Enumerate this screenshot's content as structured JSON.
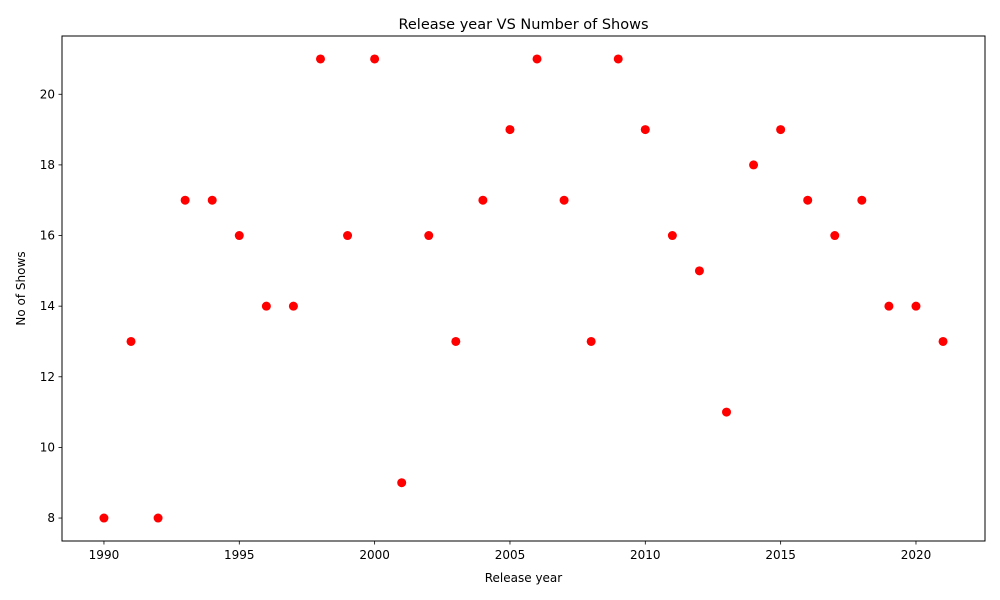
{
  "chart_data": {
    "type": "scatter",
    "title": "Release year VS Number of Shows",
    "xlabel": "Release year",
    "ylabel": "No of Shows",
    "x": [
      1990,
      1991,
      1992,
      1993,
      1994,
      1995,
      1996,
      1997,
      1998,
      1999,
      2000,
      2001,
      2002,
      2003,
      2004,
      2005,
      2006,
      2007,
      2008,
      2009,
      2010,
      2011,
      2012,
      2013,
      2014,
      2015,
      2016,
      2017,
      2018,
      2019,
      2020,
      2021
    ],
    "y": [
      8,
      13,
      8,
      17,
      17,
      16,
      14,
      14,
      21,
      16,
      21,
      9,
      16,
      13,
      17,
      19,
      21,
      17,
      13,
      21,
      19,
      16,
      15,
      11,
      18,
      19,
      17,
      16,
      17,
      14,
      14,
      13
    ],
    "xlim": [
      1988.45,
      2022.55
    ],
    "ylim": [
      7.35,
      21.65
    ],
    "xticks": [
      "1990",
      "1995",
      "2000",
      "2005",
      "2010",
      "2015",
      "2020"
    ],
    "yticks": [
      "8",
      "10",
      "12",
      "14",
      "16",
      "18",
      "20"
    ],
    "marker_color": "#ff0000",
    "grid": false,
    "legend": false
  }
}
